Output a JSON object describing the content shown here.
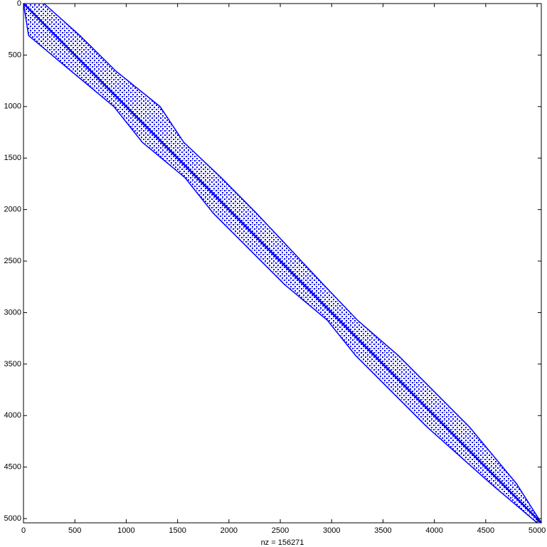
{
  "chart_data": {
    "type": "spy",
    "xlabel": "nz = 156271",
    "xlim": [
      0,
      5041
    ],
    "ylim": [
      0,
      5041
    ],
    "xticks": [
      0,
      500,
      1000,
      1500,
      2000,
      2500,
      3000,
      3500,
      4000,
      4500,
      5000
    ],
    "yticks": [
      0,
      500,
      1000,
      1500,
      2000,
      2500,
      3000,
      3500,
      4000,
      4500,
      5000
    ],
    "y_reversed": true,
    "color": "#0000ff",
    "rows": [
      0,
      311,
      656,
      1000,
      1347,
      1690,
      2037,
      2728,
      3073,
      3418,
      4109,
      4662,
      5041
    ],
    "col_min": [
      0,
      50,
      465,
      880,
      1157,
      1572,
      1849,
      2542,
      2957,
      3234,
      3927,
      4550,
      5000
    ],
    "col_max": [
      200,
      550,
      900,
      1330,
      1560,
      1925,
      2270,
      2920,
      3250,
      3650,
      4340,
      4800,
      5041
    ]
  }
}
